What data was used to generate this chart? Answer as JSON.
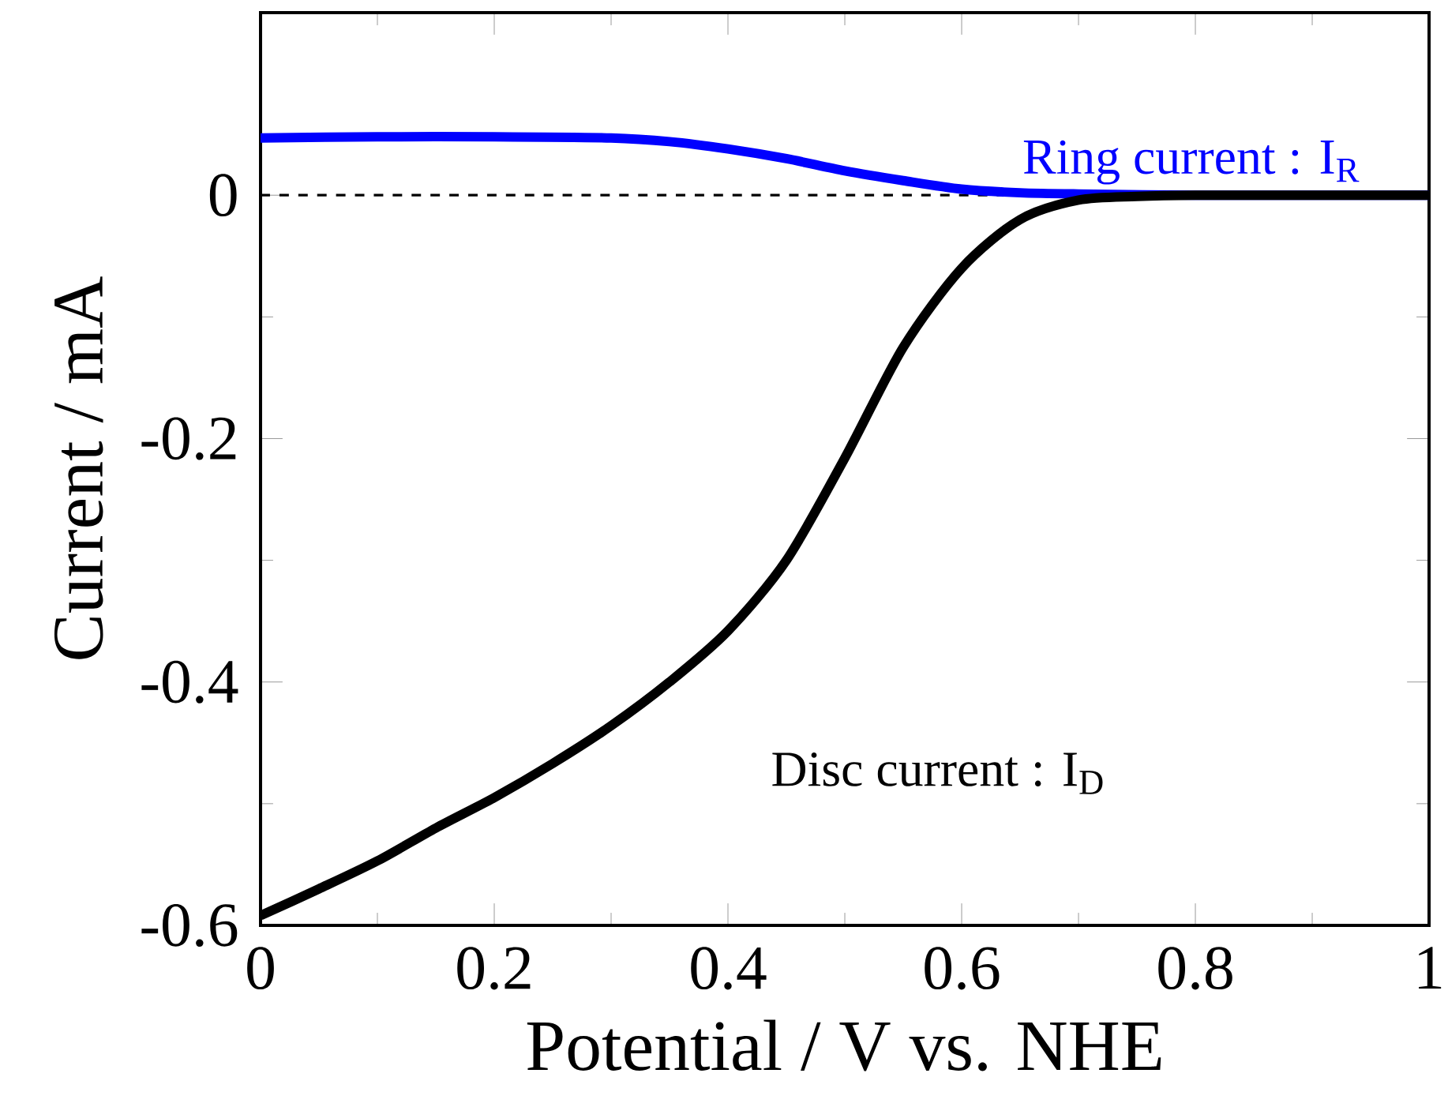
{
  "chart_data": {
    "type": "line",
    "xlabel": "Potential / V vs. NHE",
    "ylabel": "Current / mA",
    "xlim": [
      0,
      1
    ],
    "ylim": [
      -0.6,
      0.15
    ],
    "xticks": [
      0,
      0.2,
      0.4,
      0.6,
      0.8,
      1
    ],
    "yticks": [
      -0.6,
      -0.4,
      -0.2,
      0
    ],
    "legend": false,
    "grid": false,
    "marker": "none",
    "line_style": "solid",
    "ref_lines": [
      {
        "axis": "y",
        "value": 0,
        "color": "#000000",
        "line_style": "dashed"
      }
    ],
    "series": [
      {
        "name": "Ring current : I$_{R}$",
        "color": "#0000ff",
        "x": [
          0,
          0.1,
          0.2,
          0.3,
          0.35,
          0.4,
          0.45,
          0.5,
          0.55,
          0.6,
          0.65,
          0.7,
          0.8,
          0.9,
          1
        ],
        "values": [
          0.047,
          0.048,
          0.048,
          0.047,
          0.044,
          0.038,
          0.03,
          0.02,
          0.012,
          0.005,
          0.002,
          0.001,
          0,
          0,
          0
        ]
      },
      {
        "name": "Disc current : I$_{D}$",
        "color": "#000000",
        "x": [
          0,
          0.05,
          0.1,
          0.15,
          0.2,
          0.25,
          0.3,
          0.35,
          0.4,
          0.45,
          0.5,
          0.55,
          0.6,
          0.65,
          0.7,
          0.75,
          0.8,
          0.9,
          1
        ],
        "values": [
          -0.592,
          -0.57,
          -0.547,
          -0.52,
          -0.495,
          -0.467,
          -0.436,
          -0.4,
          -0.358,
          -0.3,
          -0.216,
          -0.125,
          -0.06,
          -0.02,
          -0.004,
          -0.001,
          0,
          0,
          0
        ]
      }
    ]
  }
}
